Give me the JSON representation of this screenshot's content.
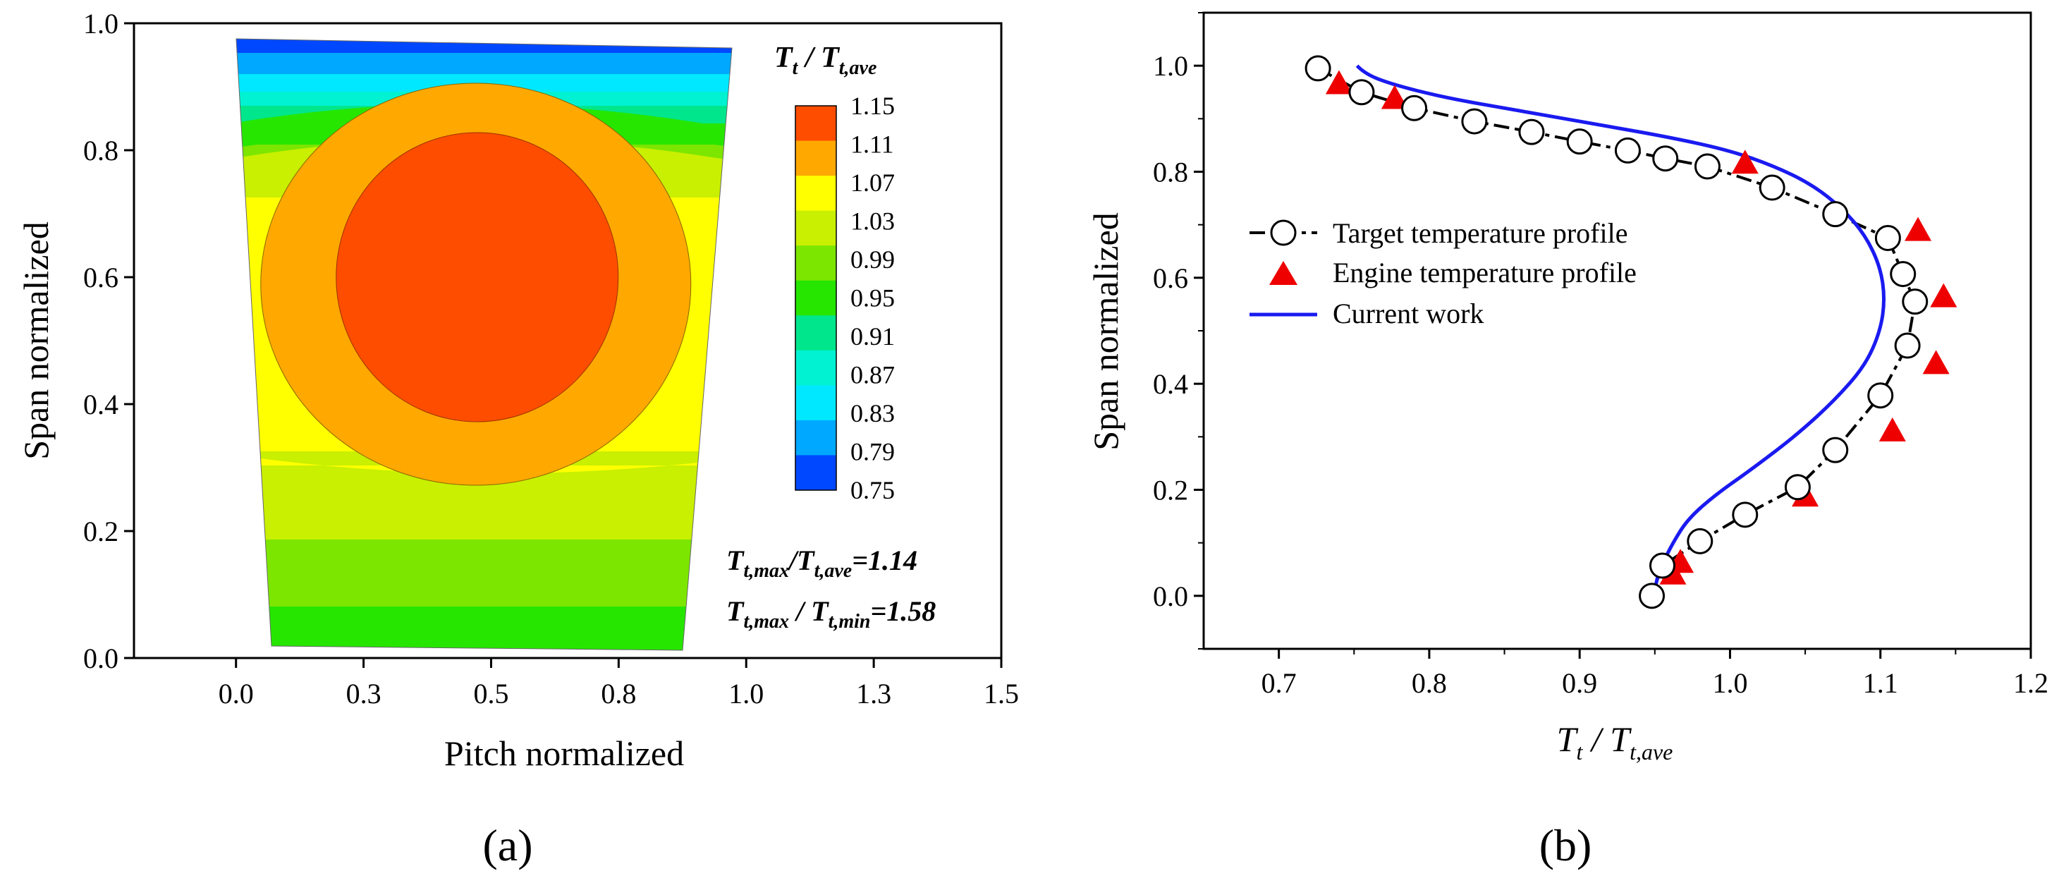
{
  "chart_data": [
    {
      "type": "contour",
      "panel_label": "(a)",
      "xlabel": "Pitch normalized",
      "ylabel": "Span normalized",
      "xlim": [
        -0.2,
        1.5
      ],
      "ylim": [
        0.0,
        1.0
      ],
      "xticks": [
        "0.0",
        "0.3",
        "0.5",
        "0.8",
        "1.0",
        "1.3",
        "1.5"
      ],
      "xtick_values": [
        0.0,
        0.25,
        0.5,
        0.75,
        1.0,
        1.25,
        1.5
      ],
      "yticks": [
        "0.0",
        "0.2",
        "0.4",
        "0.6",
        "0.8",
        "1.0"
      ],
      "colorbar_title_main": "T",
      "colorbar_title_sub": "t",
      "colorbar_title_sep": " / ",
      "colorbar_title_main2": "T",
      "colorbar_title_sub2": "t,ave",
      "colorbar_levels": [
        "1.15",
        "1.11",
        "1.07",
        "1.03",
        "0.99",
        "0.95",
        "0.91",
        "0.87",
        "0.83",
        "0.79",
        "0.75"
      ],
      "colorbar_colors": [
        "#ff4d00",
        "#ffa800",
        "#ffff00",
        "#c8f000",
        "#7ce600",
        "#26e600",
        "#00e68c",
        "#00f2d2",
        "#00e8ff",
        "#00a8ff",
        "#0048ff"
      ],
      "annotations": [
        {
          "main": "T",
          "sub": "t,max",
          "sep": "/",
          "main2": "T",
          "sub2": "t,ave",
          "value": "=1.14"
        },
        {
          "main": "T",
          "sub": "t,max",
          "sep": " / ",
          "main2": "T",
          "sub2": "t,min",
          "value": "=1.58"
        }
      ],
      "peak_value": 1.14,
      "peak_location": {
        "pitch": 0.47,
        "span": 0.6
      }
    },
    {
      "type": "scatter",
      "panel_label": "(b)",
      "xlabel_main": "T",
      "xlabel_sub": "t",
      "xlabel_sep": " / ",
      "xlabel_main2": "T",
      "xlabel_sub2": "t,ave",
      "ylabel": "Span normalized",
      "xlim": [
        0.65,
        1.2
      ],
      "ylim": [
        -0.1,
        1.1
      ],
      "xticks": [
        "0.7",
        "0.8",
        "0.9",
        "1.0",
        "1.1",
        "1.2"
      ],
      "yticks": [
        "0.0",
        "0.2",
        "0.4",
        "0.6",
        "0.8",
        "1.0"
      ],
      "series": [
        {
          "name": "Target temperature profile",
          "marker": "circle",
          "line": "dash-dot",
          "x": [
            0.726,
            0.755,
            0.79,
            0.83,
            0.868,
            0.9,
            0.932,
            0.957,
            0.985,
            1.028,
            1.07,
            1.105,
            1.115,
            1.123,
            1.118,
            1.1,
            1.07,
            1.045,
            1.01,
            0.98,
            0.955,
            0.948
          ],
          "y": [
            0.995,
            0.95,
            0.92,
            0.895,
            0.875,
            0.857,
            0.84,
            0.825,
            0.81,
            0.77,
            0.72,
            0.675,
            0.607,
            0.555,
            0.472,
            0.378,
            0.275,
            0.205,
            0.153,
            0.103,
            0.057,
            0.0
          ]
        },
        {
          "name": "Engine temperature profile",
          "marker": "triangle",
          "color": "#ee0000",
          "x": [
            0.74,
            0.777,
            1.01,
            1.125,
            1.142,
            1.137,
            1.108,
            1.05,
            0.967,
            0.962
          ],
          "y": [
            0.965,
            0.937,
            0.815,
            0.688,
            0.563,
            0.437,
            0.31,
            0.187,
            0.062,
            0.04
          ]
        },
        {
          "name": "Current work",
          "line": "solid",
          "color": "#1a1af0",
          "x": [
            0.752,
            0.757,
            0.775,
            0.81,
            0.86,
            0.91,
            0.96,
            1.0,
            1.03,
            1.055,
            1.075,
            1.09,
            1.1,
            1.103,
            1.1,
            1.09,
            1.07,
            1.045,
            1.015,
            0.99,
            0.972,
            0.962,
            0.955,
            0.951,
            0.95
          ],
          "y": [
            1.0,
            0.985,
            0.965,
            0.94,
            0.915,
            0.89,
            0.865,
            0.84,
            0.81,
            0.775,
            0.73,
            0.68,
            0.62,
            0.56,
            0.5,
            0.435,
            0.37,
            0.305,
            0.24,
            0.19,
            0.145,
            0.1,
            0.06,
            0.03,
            0.0
          ]
        }
      ]
    }
  ]
}
